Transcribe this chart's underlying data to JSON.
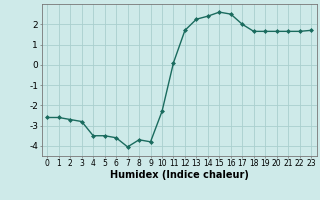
{
  "x": [
    0,
    1,
    2,
    3,
    4,
    5,
    6,
    7,
    8,
    9,
    10,
    11,
    12,
    13,
    14,
    15,
    16,
    17,
    18,
    19,
    20,
    21,
    22,
    23
  ],
  "y": [
    -2.6,
    -2.6,
    -2.7,
    -2.8,
    -3.5,
    -3.5,
    -3.6,
    -4.05,
    -3.7,
    -3.8,
    -2.3,
    0.1,
    1.7,
    2.25,
    2.4,
    2.6,
    2.5,
    2.0,
    1.65,
    1.65,
    1.65,
    1.65,
    1.65,
    1.7
  ],
  "line_color": "#1a6b5e",
  "marker": "D",
  "marker_size": 2.0,
  "line_width": 1.0,
  "background_color": "#ceeae9",
  "grid_color": "#aacfce",
  "xlabel": "Humidex (Indice chaleur)",
  "xlabel_fontsize": 7,
  "ylim": [
    -4.5,
    3.0
  ],
  "xlim": [
    -0.5,
    23.5
  ],
  "yticks": [
    -4,
    -3,
    -2,
    -1,
    0,
    1,
    2
  ],
  "xticks": [
    0,
    1,
    2,
    3,
    4,
    5,
    6,
    7,
    8,
    9,
    10,
    11,
    12,
    13,
    14,
    15,
    16,
    17,
    18,
    19,
    20,
    21,
    22,
    23
  ],
  "tick_fontsize": 5.5,
  "ytick_fontsize": 6.5
}
